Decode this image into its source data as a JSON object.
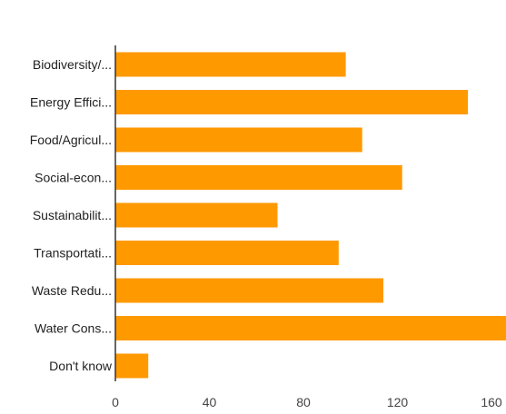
{
  "chart_data": {
    "type": "bar",
    "orientation": "horizontal",
    "categories": [
      "Biodiversity/...",
      "Energy Effici...",
      "Food/Agricul...",
      "Social-econ...",
      "Sustainabilit...",
      "Transportati...",
      "Waste Redu...",
      "Water Cons...",
      "Don't know"
    ],
    "values": [
      98,
      150,
      105,
      122,
      69,
      95,
      114,
      170,
      14
    ],
    "x_ticks": [
      0,
      40,
      80,
      120,
      160
    ],
    "xlim": [
      0,
      160
    ],
    "grid": false,
    "legend": "none",
    "title": "",
    "xlabel": "",
    "ylabel": "",
    "colors": {
      "bar": "#FF9900",
      "axis": "#333333"
    }
  }
}
